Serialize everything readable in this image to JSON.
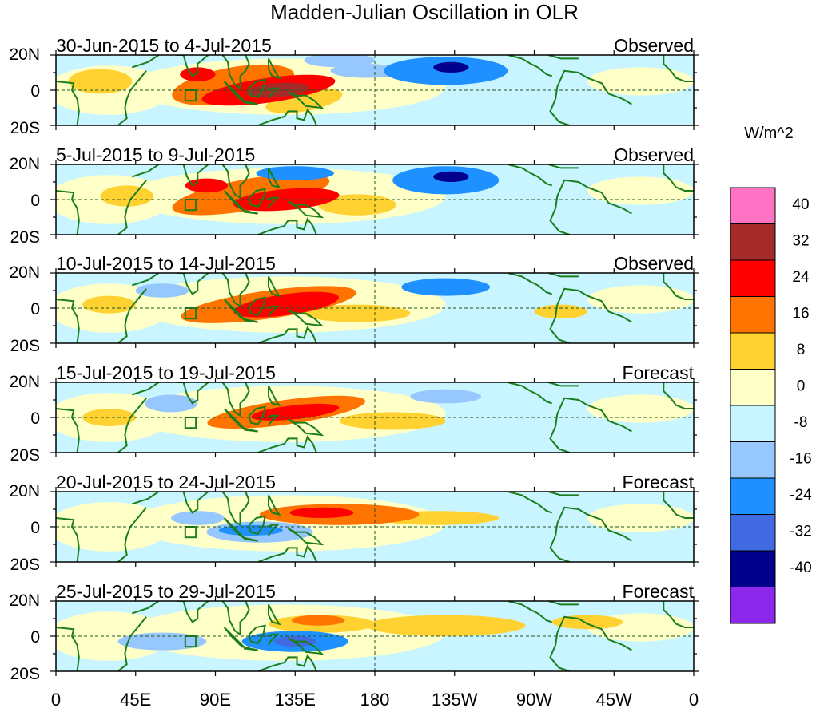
{
  "chart_data": {
    "type": "heatmap",
    "title": "Madden-Julian Oscillation in OLR",
    "units_label": "W/m^2",
    "y_tick_labels": [
      "20N",
      "0",
      "20S"
    ],
    "x_tick_labels": [
      "0",
      "45E",
      "90E",
      "135E",
      "180",
      "135W",
      "90W",
      "45W",
      "0"
    ],
    "x_range_deg_east": [
      0,
      360
    ],
    "y_range_deg": [
      -20,
      20
    ],
    "legend": {
      "position": "right",
      "levels": [
        "40",
        "32",
        "24",
        "16",
        "8",
        "0",
        "-8",
        "-16",
        "-24",
        "-32",
        "-40"
      ],
      "colors": [
        "#ff73c5",
        "#a52a2a",
        "#ff0000",
        "#ff7300",
        "#ffd232",
        "#ffffc8",
        "#c8f5ff",
        "#96c8ff",
        "#1e90ff",
        "#4169e1",
        "#00008c",
        "#8c28eb"
      ]
    },
    "panels": [
      {
        "date_range": "30-Jun-2015 to 4-Jul-2015",
        "status": "Observed",
        "blobs": [
          {
            "lon": 100,
            "lat": 3,
            "rlon": 35,
            "rlat": 10,
            "level": 16,
            "rot": -10
          },
          {
            "lon": 120,
            "lat": 0,
            "rlon": 38,
            "rlat": 7,
            "level": 24,
            "rot": -8
          },
          {
            "lon": 125,
            "lat": 0,
            "rlon": 18,
            "rlat": 4,
            "level": 32,
            "rot": -5
          },
          {
            "lon": 80,
            "lat": 9,
            "rlon": 10,
            "rlat": 4,
            "level": 24,
            "rot": 0
          },
          {
            "lon": 140,
            "lat": -6,
            "rlon": 22,
            "rlat": 6,
            "level": 8,
            "rot": -10
          },
          {
            "lon": 25,
            "lat": 5,
            "rlon": 18,
            "rlat": 7,
            "level": 8,
            "rot": 0
          },
          {
            "lon": 220,
            "lat": 11,
            "rlon": 35,
            "rlat": 8,
            "level": -16,
            "rot": 0
          },
          {
            "lon": 223,
            "lat": 13,
            "rlon": 10,
            "rlat": 3,
            "level": -32,
            "rot": 0
          },
          {
            "lon": 175,
            "lat": 11,
            "rlon": 20,
            "rlat": 4,
            "level": -8,
            "rot": 0
          },
          {
            "lon": 160,
            "lat": 17,
            "rlon": 20,
            "rlat": 4,
            "level": -8,
            "rot": 0
          }
        ]
      },
      {
        "date_range": "5-Jul-2015 to 9-Jul-2015",
        "status": "Observed",
        "blobs": [
          {
            "lon": 110,
            "lat": 3,
            "rlon": 45,
            "rlat": 9,
            "level": 16,
            "rot": -10
          },
          {
            "lon": 130,
            "lat": 0,
            "rlon": 30,
            "rlat": 6,
            "level": 24,
            "rot": -5
          },
          {
            "lon": 85,
            "lat": 8,
            "rlon": 12,
            "rlat": 4,
            "level": 24,
            "rot": 0
          },
          {
            "lon": 170,
            "lat": -3,
            "rlon": 22,
            "rlat": 6,
            "level": 8,
            "rot": 0
          },
          {
            "lon": 135,
            "lat": 15,
            "rlon": 22,
            "rlat": 4,
            "level": -16,
            "rot": 0
          },
          {
            "lon": 220,
            "lat": 11,
            "rlon": 30,
            "rlat": 8,
            "level": -16,
            "rot": 0
          },
          {
            "lon": 223,
            "lat": 13,
            "rlon": 10,
            "rlat": 3,
            "level": -32,
            "rot": 0
          },
          {
            "lon": 40,
            "lat": 2,
            "rlon": 15,
            "rlat": 6,
            "level": 8,
            "rot": 0
          }
        ]
      },
      {
        "date_range": "10-Jul-2015 to 14-Jul-2015",
        "status": "Observed",
        "blobs": [
          {
            "lon": 120,
            "lat": 2,
            "rlon": 50,
            "rlat": 8,
            "level": 16,
            "rot": -8
          },
          {
            "lon": 130,
            "lat": 2,
            "rlon": 30,
            "rlat": 6,
            "level": 24,
            "rot": -8
          },
          {
            "lon": 170,
            "lat": -3,
            "rlon": 30,
            "rlat": 5,
            "level": 8,
            "rot": 0
          },
          {
            "lon": 220,
            "lat": 12,
            "rlon": 25,
            "rlat": 5,
            "level": -16,
            "rot": 0
          },
          {
            "lon": 60,
            "lat": 10,
            "rlon": 15,
            "rlat": 4,
            "level": -8,
            "rot": 0
          },
          {
            "lon": 30,
            "lat": 2,
            "rlon": 15,
            "rlat": 5,
            "level": 8,
            "rot": 0
          },
          {
            "lon": 285,
            "lat": -2,
            "rlon": 15,
            "rlat": 4,
            "level": 8,
            "rot": 0
          }
        ]
      },
      {
        "date_range": "15-Jul-2015 to 19-Jul-2015",
        "status": "Forecast",
        "blobs": [
          {
            "lon": 130,
            "lat": 3,
            "rlon": 45,
            "rlat": 7,
            "level": 16,
            "rot": -8
          },
          {
            "lon": 135,
            "lat": 3,
            "rlon": 25,
            "rlat": 4,
            "level": 24,
            "rot": -6
          },
          {
            "lon": 190,
            "lat": -2,
            "rlon": 30,
            "rlat": 5,
            "level": 8,
            "rot": 0
          },
          {
            "lon": 30,
            "lat": 0,
            "rlon": 15,
            "rlat": 5,
            "level": 8,
            "rot": 0
          },
          {
            "lon": 65,
            "lat": 8,
            "rlon": 15,
            "rlat": 5,
            "level": -8,
            "rot": 0
          },
          {
            "lon": 220,
            "lat": 12,
            "rlon": 20,
            "rlat": 4,
            "level": -8,
            "rot": 0
          }
        ]
      },
      {
        "date_range": "20-Jul-2015 to 24-Jul-2015",
        "status": "Forecast",
        "blobs": [
          {
            "lon": 160,
            "lat": 7,
            "rlon": 45,
            "rlat": 6,
            "level": 16,
            "rot": 0
          },
          {
            "lon": 150,
            "lat": 8,
            "rlon": 18,
            "rlat": 3,
            "level": 24,
            "rot": 0
          },
          {
            "lon": 115,
            "lat": -3,
            "rlon": 30,
            "rlat": 6,
            "level": -8,
            "rot": 0
          },
          {
            "lon": 110,
            "lat": -2,
            "rlon": 18,
            "rlat": 3,
            "level": -16,
            "rot": 0
          },
          {
            "lon": 215,
            "lat": 5,
            "rlon": 35,
            "rlat": 4,
            "level": 8,
            "rot": 0
          },
          {
            "lon": 80,
            "lat": 5,
            "rlon": 15,
            "rlat": 4,
            "level": -8,
            "rot": 0
          }
        ]
      },
      {
        "date_range": "25-Jul-2015 to 29-Jul-2015",
        "status": "Forecast",
        "blobs": [
          {
            "lon": 150,
            "lat": 7,
            "rlon": 30,
            "rlat": 5,
            "level": 8,
            "rot": 0
          },
          {
            "lon": 148,
            "lat": 9,
            "rlon": 15,
            "rlat": 3,
            "level": 16,
            "rot": 0
          },
          {
            "lon": 135,
            "lat": -3,
            "rlon": 30,
            "rlat": 6,
            "level": -16,
            "rot": 0
          },
          {
            "lon": 135,
            "lat": -3,
            "rlon": 12,
            "rlat": 3,
            "level": -24,
            "rot": 0
          },
          {
            "lon": 220,
            "lat": 6,
            "rlon": 45,
            "rlat": 6,
            "level": 8,
            "rot": 0
          },
          {
            "lon": 60,
            "lat": -3,
            "rlon": 25,
            "rlat": 5,
            "level": -8,
            "rot": 0
          },
          {
            "lon": 300,
            "lat": 8,
            "rlon": 20,
            "rlat": 4,
            "level": 8,
            "rot": 0
          }
        ]
      }
    ]
  }
}
